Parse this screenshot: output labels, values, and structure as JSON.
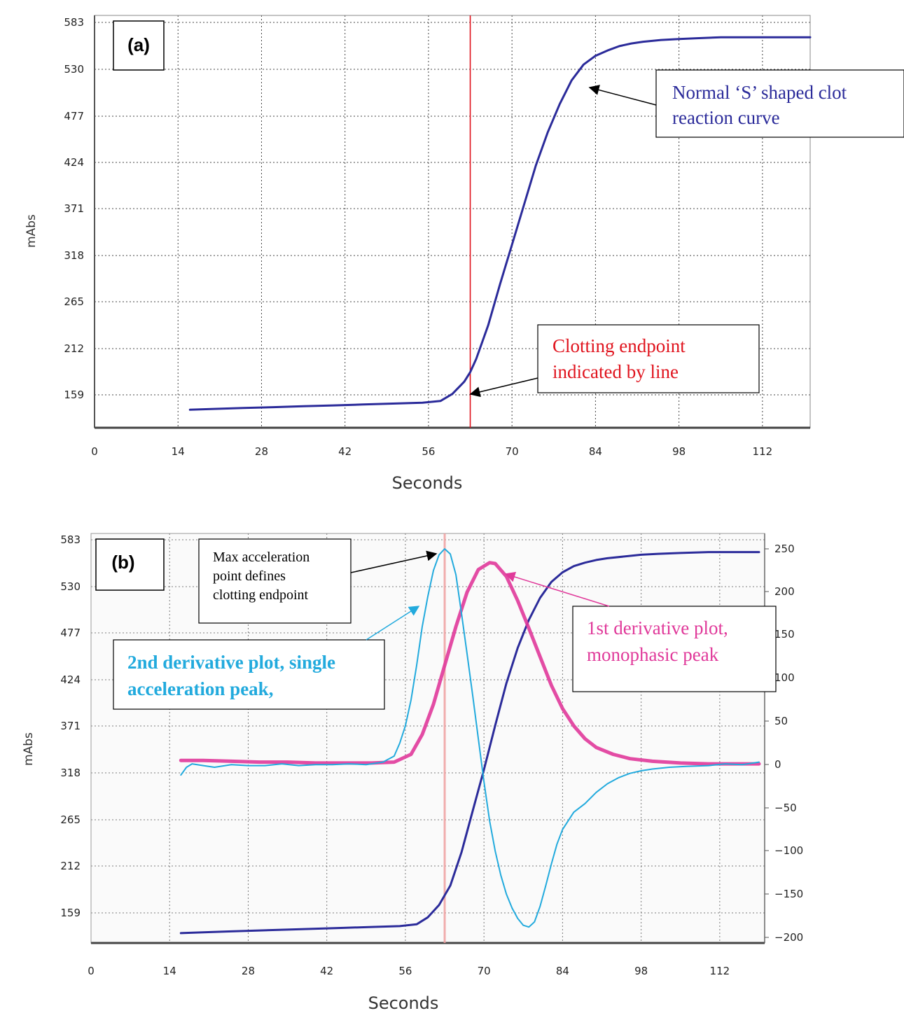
{
  "chart_data": [
    {
      "panel": "(a)",
      "type": "line",
      "xlabel": "Seconds",
      "ylabel": "mAbs",
      "xlim": [
        0,
        120
      ],
      "ylim": [
        100,
        583
      ],
      "x_ticks": [
        "0",
        "14",
        "28",
        "42",
        "56",
        "70",
        "84",
        "98",
        "112"
      ],
      "y_ticks": [
        "583",
        "530",
        "477",
        "424",
        "371",
        "318",
        "265",
        "212",
        "159"
      ],
      "grid": true,
      "endpoint_line_x": 63,
      "series": [
        {
          "color": "#2b2b9a",
          "x": [
            16,
            20,
            25,
            30,
            35,
            40,
            45,
            50,
            55,
            58,
            60,
            62,
            63,
            64,
            66,
            68,
            70,
            72,
            74,
            76,
            78,
            80,
            82,
            84,
            86,
            88,
            90,
            92,
            95,
            98,
            101,
            105,
            110,
            115,
            120
          ],
          "y": [
            142,
            143,
            144,
            145,
            146,
            147,
            148,
            149,
            150,
            152,
            160,
            174,
            185,
            200,
            238,
            285,
            330,
            375,
            420,
            458,
            490,
            517,
            535,
            545,
            551,
            556,
            559,
            561,
            563,
            564,
            565,
            566,
            566,
            566,
            566
          ]
        }
      ],
      "annotations": [
        {
          "text_lines": [
            "Normal ‘S’ shaped clot",
            "reaction curve"
          ],
          "color": "#2b2b9a"
        },
        {
          "text_lines": [
            "Clotting endpoint",
            "indicated by line"
          ],
          "color": "#e0141e"
        }
      ]
    },
    {
      "panel": "(b)",
      "type": "line",
      "xlabel": "Seconds",
      "ylabel": "mAbs",
      "xlim": [
        0,
        120
      ],
      "ylim": [
        100,
        583
      ],
      "y2lim": [
        -200,
        258
      ],
      "x_ticks": [
        "0",
        "14",
        "28",
        "42",
        "56",
        "70",
        "84",
        "98",
        "112"
      ],
      "y_ticks": [
        "583",
        "530",
        "477",
        "424",
        "371",
        "318",
        "265",
        "212",
        "159"
      ],
      "y2_ticks": [
        "250",
        "200",
        "150",
        "100",
        "50",
        "0",
        "−50",
        "−100",
        "−150",
        "−200"
      ],
      "grid": true,
      "endpoint_line_x": 63,
      "series": [
        {
          "axis": "left",
          "color": "#2b2b9a",
          "x": [
            16,
            20,
            25,
            30,
            35,
            40,
            45,
            50,
            55,
            58,
            60,
            62,
            64,
            66,
            68,
            70,
            72,
            74,
            76,
            78,
            80,
            82,
            84,
            86,
            88,
            90,
            92,
            95,
            98,
            101,
            105,
            110,
            115,
            119
          ],
          "y": [
            136,
            137,
            138,
            139,
            140,
            141,
            142,
            143,
            144,
            146,
            154,
            168,
            190,
            228,
            275,
            322,
            372,
            420,
            460,
            492,
            517,
            535,
            546,
            553,
            557,
            560,
            562,
            564,
            566,
            567,
            568,
            569,
            569,
            569
          ]
        },
        {
          "axis": "right",
          "color": "#e0399a",
          "x": [
            16,
            20,
            25,
            30,
            35,
            40,
            45,
            50,
            54,
            57,
            59,
            61,
            63,
            65,
            67,
            69,
            71,
            72,
            74,
            76,
            78,
            80,
            82,
            84,
            86,
            88,
            90,
            93,
            96,
            100,
            105,
            110,
            115,
            119
          ],
          "y": [
            5,
            5,
            4,
            3,
            3,
            2,
            2,
            2,
            3,
            12,
            35,
            70,
            115,
            160,
            200,
            226,
            234,
            233,
            218,
            190,
            158,
            125,
            92,
            65,
            45,
            30,
            20,
            12,
            7,
            4,
            2,
            1,
            1,
            1
          ]
        },
        {
          "axis": "right",
          "color": "#22aadd",
          "x": [
            16,
            17,
            18,
            20,
            22,
            25,
            28,
            31,
            34,
            37,
            40,
            43,
            46,
            49,
            52,
            54,
            55,
            56,
            57,
            58,
            59,
            60,
            61,
            62,
            63,
            64,
            65,
            66,
            67,
            68,
            69,
            70,
            71,
            72,
            73,
            74,
            75,
            76,
            77,
            78,
            79,
            80,
            81,
            82,
            83,
            84,
            86,
            88,
            90,
            92,
            94,
            96,
            98,
            100,
            103,
            106,
            110,
            113,
            116,
            119
          ],
          "y": [
            -12,
            -3,
            1,
            -1,
            -3,
            0,
            -1,
            -1,
            1,
            -1,
            0,
            0,
            1,
            0,
            3,
            10,
            25,
            45,
            75,
            115,
            160,
            195,
            225,
            243,
            250,
            244,
            220,
            175,
            128,
            80,
            30,
            -20,
            -65,
            -100,
            -128,
            -150,
            -166,
            -178,
            -186,
            -188,
            -182,
            -164,
            -140,
            -115,
            -92,
            -75,
            -55,
            -45,
            -32,
            -22,
            -15,
            -10,
            -7,
            -5,
            -3,
            -2,
            -1,
            1,
            0,
            3
          ]
        }
      ],
      "annotations": [
        {
          "text_lines": [
            "Max acceleration",
            "point defines",
            "clotting endpoint"
          ],
          "color": "#000000"
        },
        {
          "text_lines": [
            "2nd derivative plot, single",
            "acceleration peak,"
          ],
          "color": "#22aadd"
        },
        {
          "text_lines": [
            "1st derivative plot,",
            "monophasic peak"
          ],
          "color": "#e0399a"
        }
      ]
    }
  ]
}
